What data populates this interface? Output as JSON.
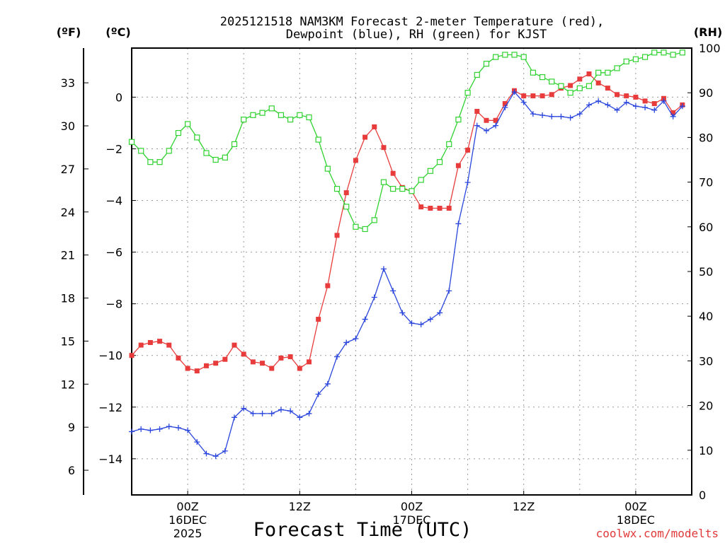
{
  "chart_data": {
    "type": "line",
    "title_line1": "2025121518 NAM3KM Forecast 2-meter Temperature (red),",
    "title_line2": "Dewpoint (blue), RH (green) for KJST",
    "xlabel": "Forecast Time (UTC)",
    "credit": "coolwx.com/modelts",
    "units": {
      "fahrenheit": "(ºF)",
      "celsius": "(ºC)",
      "rh": "(RH)"
    },
    "x_range_hours": [
      -6,
      54
    ],
    "celsius_range": [
      -15.4,
      1.9
    ],
    "rh_range": [
      0,
      100
    ],
    "fahrenheit_ticks": [
      "6",
      "9",
      "12",
      "15",
      "18",
      "21",
      "24",
      "27",
      "30",
      "33"
    ],
    "celsius_ticks": [
      "-14",
      "-12",
      "-10",
      "-8",
      "-6",
      "-4",
      "-2",
      "0"
    ],
    "rh_ticks": [
      "0",
      "10",
      "20",
      "30",
      "40",
      "50",
      "60",
      "70",
      "80",
      "90",
      "100"
    ],
    "x_ticks": [
      {
        "label": "00Z",
        "sub1": "16DEC",
        "sub2": "2025"
      },
      {
        "label": "12Z",
        "sub1": "",
        "sub2": ""
      },
      {
        "label": "00Z",
        "sub1": "17DEC",
        "sub2": ""
      },
      {
        "label": "12Z",
        "sub1": "",
        "sub2": ""
      },
      {
        "label": "00Z",
        "sub1": "18DEC",
        "sub2": ""
      }
    ],
    "series": [
      {
        "name": "Temperature",
        "axis": "celsius",
        "color": "#e83c3c",
        "marker": "filled-square",
        "values": [
          -10.0,
          -9.6,
          -9.5,
          -9.45,
          -9.6,
          -10.1,
          -10.5,
          -10.6,
          -10.4,
          -10.3,
          -10.15,
          -9.6,
          -9.95,
          -10.25,
          -10.3,
          -10.5,
          -10.1,
          -10.05,
          -10.5,
          -10.25,
          -8.6,
          -7.3,
          -5.35,
          -3.7,
          -2.45,
          -1.55,
          -1.15,
          -1.95,
          -2.95,
          -3.5,
          -3.65,
          -4.25,
          -4.3,
          -4.3,
          -4.3,
          -2.65,
          -2.05,
          -0.55,
          -0.9,
          -0.9,
          -0.25,
          0.25,
          0.05,
          0.05,
          0.05,
          0.1,
          0.35,
          0.45,
          0.7,
          0.9,
          0.55,
          0.35,
          0.1,
          0.05,
          0.0,
          -0.15,
          -0.25,
          -0.05,
          -0.6,
          -0.3
        ]
      },
      {
        "name": "Dewpoint",
        "axis": "celsius",
        "color": "#2a46dc",
        "marker": "plus",
        "values": [
          -12.95,
          -12.85,
          -12.9,
          -12.85,
          -12.75,
          -12.8,
          -12.9,
          -13.35,
          -13.8,
          -13.9,
          -13.7,
          -12.4,
          -12.05,
          -12.25,
          -12.25,
          -12.25,
          -12.1,
          -12.15,
          -12.4,
          -12.25,
          -11.5,
          -11.1,
          -10.05,
          -9.5,
          -9.35,
          -8.6,
          -7.75,
          -6.65,
          -7.5,
          -8.35,
          -8.75,
          -8.8,
          -8.6,
          -8.35,
          -7.5,
          -4.9,
          -3.3,
          -1.1,
          -1.3,
          -1.1,
          -0.4,
          0.2,
          -0.2,
          -0.65,
          -0.7,
          -0.75,
          -0.75,
          -0.8,
          -0.65,
          -0.3,
          -0.15,
          -0.3,
          -0.5,
          -0.2,
          -0.35,
          -0.4,
          -0.5,
          -0.15,
          -0.75,
          -0.35
        ]
      },
      {
        "name": "RH",
        "axis": "rh",
        "color": "#30d230",
        "marker": "open-square",
        "values": [
          79,
          77,
          74.5,
          74.5,
          77,
          81,
          83,
          80,
          76.5,
          75,
          75.5,
          78.5,
          84,
          85,
          85.5,
          86.5,
          85,
          84,
          85,
          84.5,
          79.5,
          73,
          68.5,
          64.5,
          60,
          59.5,
          61.5,
          70,
          68.5,
          68.5,
          68,
          70.5,
          72.5,
          74.5,
          78.5,
          84,
          90,
          94,
          96.5,
          98,
          98.5,
          98.5,
          98,
          94.5,
          93.5,
          92.5,
          91.5,
          90,
          91,
          91.5,
          94.5,
          94.5,
          95.5,
          97,
          97.5,
          98,
          99,
          99,
          98.5,
          99
        ]
      }
    ]
  }
}
